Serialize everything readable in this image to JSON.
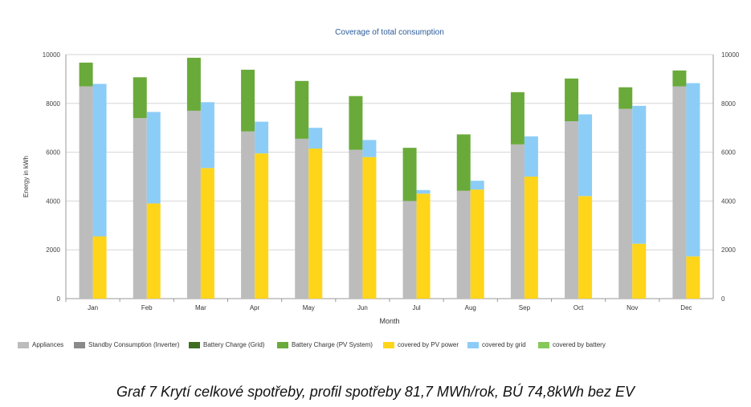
{
  "chart_data": {
    "type": "bar",
    "title": "Coverage of total consumption",
    "xlabel": "Month",
    "ylabel": "Energy in kWh",
    "ylim": [
      0,
      10000
    ],
    "yticks": [
      0,
      2000,
      4000,
      6000,
      8000,
      10000
    ],
    "grid": true,
    "legend_position": "bottom",
    "categories": [
      "Jan",
      "Feb",
      "Mar",
      "Apr",
      "May",
      "Jun",
      "Jul",
      "Aug",
      "Sep",
      "Oct",
      "Nov",
      "Dec"
    ],
    "series": [
      {
        "name": "Appliances",
        "color": "#bcbcbc",
        "stack": "consumption",
        "values": [
          8700,
          7400,
          7700,
          6850,
          6550,
          6100,
          4000,
          4420,
          6320,
          7270,
          7780,
          8700
        ]
      },
      {
        "name": "Standby Consumption (Inverter)",
        "color": "#8a8a8a",
        "stack": "consumption",
        "values": [
          0,
          0,
          0,
          0,
          0,
          0,
          0,
          0,
          0,
          0,
          0,
          0
        ]
      },
      {
        "name": "Battery Charge (Grid)",
        "color": "#3f6e22",
        "stack": "consumption",
        "values": [
          0,
          0,
          0,
          0,
          0,
          0,
          0,
          0,
          0,
          0,
          0,
          0
        ]
      },
      {
        "name": "Battery Charge (PV System)",
        "color": "#6aaa3a",
        "stack": "consumption",
        "values": [
          970,
          1670,
          2170,
          2530,
          2370,
          2200,
          2180,
          2310,
          2140,
          1750,
          880,
          650
        ]
      },
      {
        "name": "covered by PV power",
        "color": "#ffd51a",
        "stack": "coverage",
        "values": [
          2550,
          3900,
          5350,
          5950,
          6150,
          5800,
          4300,
          4470,
          5000,
          4200,
          2250,
          1730
        ]
      },
      {
        "name": "covered by grid",
        "color": "#8ccdf7",
        "stack": "coverage",
        "values": [
          6250,
          3750,
          2700,
          1300,
          850,
          700,
          150,
          360,
          1650,
          3350,
          5650,
          7100
        ]
      },
      {
        "name": "covered by battery",
        "color": "#86c95a",
        "stack": "coverage",
        "values": [
          0,
          0,
          0,
          0,
          0,
          0,
          0,
          0,
          0,
          0,
          0,
          0
        ]
      }
    ]
  },
  "caption": "Graf 7 Krytí celkové spotřeby, profil spotřeby 81,7 MWh/rok, BÚ 74,8kWh bez EV"
}
